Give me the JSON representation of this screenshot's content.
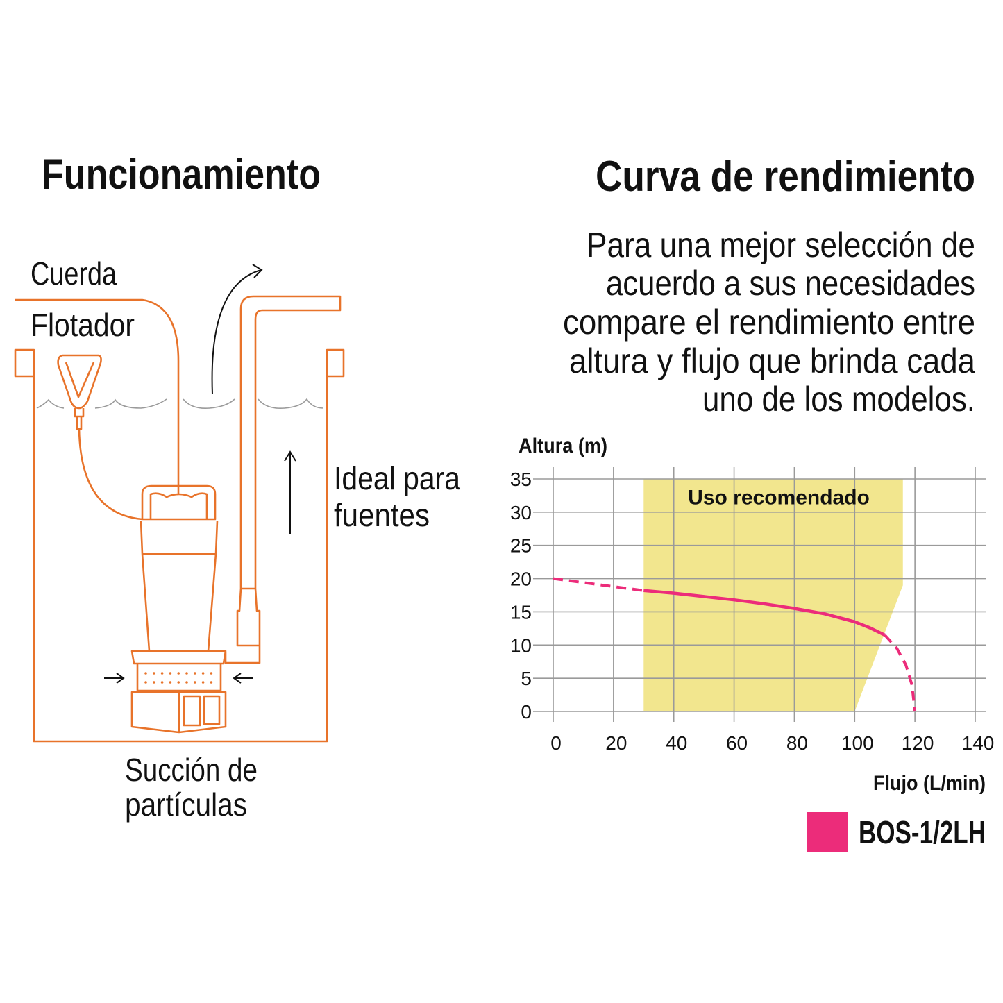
{
  "left": {
    "title": "Funcionamiento",
    "labels": {
      "rope": "Cuerda",
      "float": "Flotador",
      "ideal_1": "Ideal para",
      "ideal_2": "fuentes",
      "suction_1": "Succión de",
      "suction_2": "partículas"
    },
    "line_color": "#E8732A"
  },
  "right": {
    "title": "Curva de rendimiento",
    "description": [
      "Para una mejor selección de",
      "acuerdo a sus necesidades",
      "compare el rendimiento entre",
      "altura y flujo que brinda cada",
      "uno de los modelos."
    ]
  },
  "chart_data": {
    "type": "line",
    "xlabel": "Flujo (L/min)",
    "ylabel": "Altura (m)",
    "xlim": [
      0,
      140
    ],
    "ylim": [
      0,
      35
    ],
    "xticks": [
      "0",
      "20",
      "40",
      "60",
      "80",
      "100",
      "120",
      "140"
    ],
    "yticks": [
      "0",
      "5",
      "10",
      "15",
      "20",
      "25",
      "30",
      "35"
    ],
    "grid": true,
    "legend_placement": "bottom-right",
    "recommended_zone": {
      "label": "Uso recomendado",
      "color": "#F2E68E",
      "polygon": [
        [
          30,
          0
        ],
        [
          30,
          35
        ],
        [
          116,
          35
        ],
        [
          116,
          19
        ],
        [
          100,
          0
        ]
      ]
    },
    "series": [
      {
        "name": "BOS-1/2LH",
        "color": "#EC2C7A",
        "points": [
          [
            0,
            20
          ],
          [
            10,
            19.4
          ],
          [
            20,
            18.8
          ],
          [
            30,
            18.2
          ],
          [
            40,
            17.8
          ],
          [
            50,
            17.3
          ],
          [
            60,
            16.8
          ],
          [
            70,
            16.2
          ],
          [
            80,
            15.5
          ],
          [
            90,
            14.7
          ],
          [
            100,
            13.5
          ],
          [
            105,
            12.6
          ],
          [
            110,
            11.5
          ],
          [
            114,
            9.5
          ],
          [
            117,
            7
          ],
          [
            119,
            4
          ],
          [
            120,
            0
          ]
        ],
        "solid_range": [
          30,
          110
        ]
      }
    ]
  }
}
